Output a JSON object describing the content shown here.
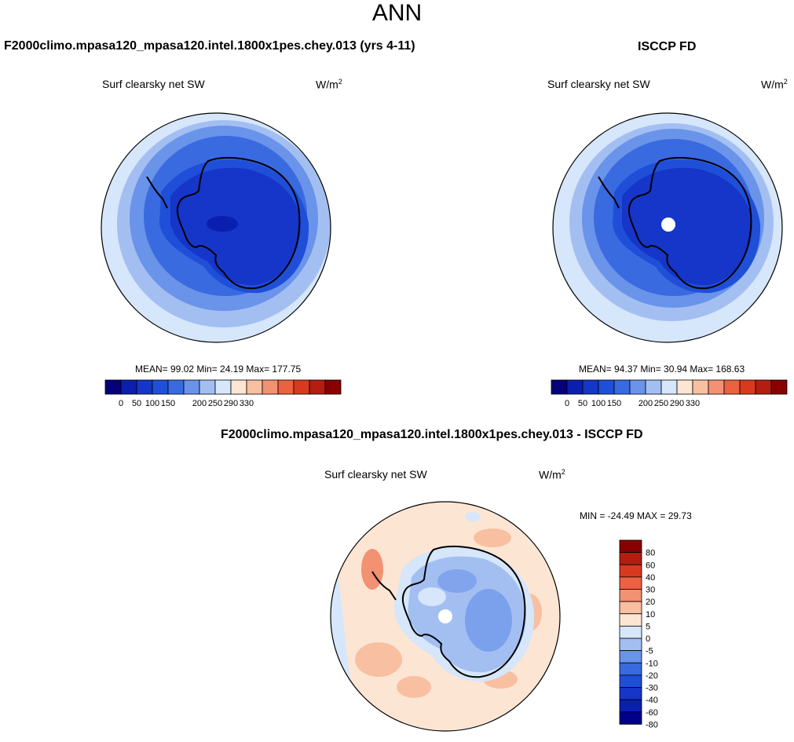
{
  "page": {
    "title": "ANN"
  },
  "panels": [
    {
      "header": "F2000climo.mpasa120_mpasa120.intel.1800x1pes.chey.013 (yrs 4-11)",
      "subtitle": "Surf clearsky net SW",
      "units_base": "W/m",
      "units_sup": "2",
      "stats": "MEAN=  99.02  Min=  24.19  Max= 177.75"
    },
    {
      "header": "ISCCP FD",
      "subtitle": "Surf clearsky net SW",
      "units_base": "W/m",
      "units_sup": "2",
      "stats": "MEAN=  94.37  Min=  30.94  Max= 168.63"
    },
    {
      "header": "F2000climo.mpasa120_mpasa120.intel.1800x1pes.chey.013 - ISCCP FD",
      "subtitle": "Surf clearsky net SW",
      "units_base": "W/m",
      "units_sup": "2",
      "stats": "MIN = -24.49 MAX =  29.73"
    }
  ],
  "colorbar_abs": {
    "colors": [
      "#06007a",
      "#0a1fb0",
      "#1536c8",
      "#1f4fd8",
      "#3a6ae0",
      "#6a93ea",
      "#a3bff2",
      "#d6e6fb",
      "#fde5d4",
      "#f9bfa1",
      "#f39173",
      "#ec6140",
      "#d8391f",
      "#b41d10",
      "#880000"
    ],
    "ticks": [
      "0",
      "50",
      "100",
      "150",
      "200",
      "250",
      "290",
      "330"
    ]
  },
  "colorbar_diff": {
    "colors": [
      "#00008a",
      "#0a1fb0",
      "#1536c8",
      "#1f4fd8",
      "#3a6ae0",
      "#6a93ea",
      "#a3bff2",
      "#d6e6fb",
      "#fde5d4",
      "#f9bfa1",
      "#f39173",
      "#ec6140",
      "#d8391f",
      "#b41d10",
      "#880000"
    ],
    "ticks": [
      "-80",
      "-60",
      "-40",
      "-30",
      "-20",
      "-10",
      "-5",
      "0",
      "5",
      "10",
      "20",
      "30",
      "40",
      "60",
      "80"
    ]
  }
}
